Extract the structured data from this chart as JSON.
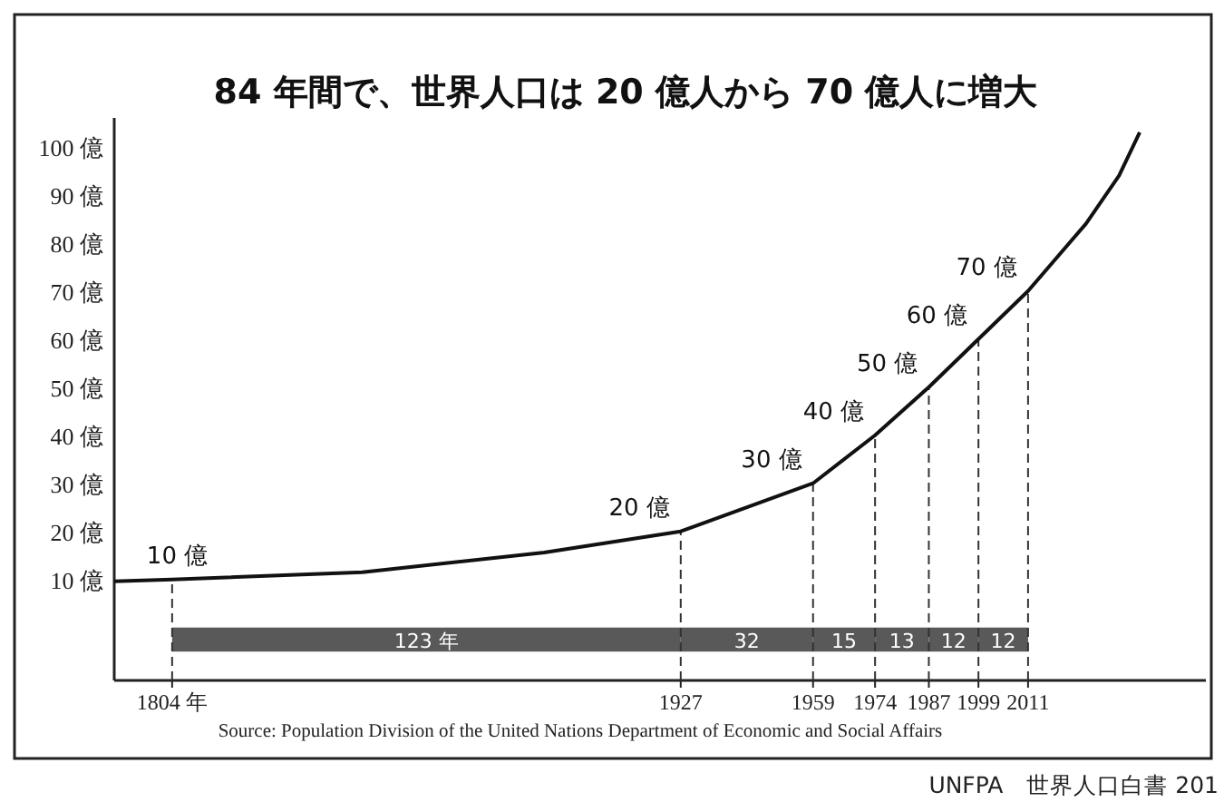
{
  "chart_data": {
    "type": "line",
    "title": "84 年間で、世界人口は 20 億人から 70 億人に増大",
    "x": [
      1790,
      1804,
      1850,
      1894,
      1927,
      1959,
      1974,
      1987,
      1999,
      2011,
      2025,
      2033,
      2038
    ],
    "series": [
      {
        "color": "#111111",
        "values": [
          9.6,
          10,
          11.5,
          15.6,
          20,
          30,
          40,
          50,
          60,
          70,
          84,
          94,
          103
        ]
      }
    ],
    "xlim": [
      1790,
      2054
    ],
    "ylim": [
      -11,
      106
    ],
    "xticks": [
      {
        "value": 1804,
        "label": "1804 年"
      },
      1927,
      1959,
      1974,
      1987,
      1999,
      2011
    ],
    "yticks": [
      {
        "value": 10,
        "label": "10 億"
      },
      {
        "value": 20,
        "label": "20 億"
      },
      {
        "value": 30,
        "label": "30 億"
      },
      {
        "value": 40,
        "label": "40 億"
      },
      {
        "value": 50,
        "label": "50 億"
      },
      {
        "value": 60,
        "label": "60 億"
      },
      {
        "value": 70,
        "label": "70 億"
      },
      {
        "value": 80,
        "label": "80 億"
      },
      {
        "value": 90,
        "label": "90 億"
      },
      {
        "value": 100,
        "label": "100 億"
      }
    ],
    "annotations": [
      {
        "text": "10 億",
        "x": 1804,
        "y": 10
      },
      {
        "text": "20 億",
        "x": 1927,
        "y": 20
      },
      {
        "text": "30 億",
        "x": 1959,
        "y": 30
      },
      {
        "text": "40 億",
        "x": 1974,
        "y": 40
      },
      {
        "text": "50 億",
        "x": 1987,
        "y": 50
      },
      {
        "text": "60 億",
        "x": 1999,
        "y": 60
      },
      {
        "text": "70 億",
        "x": 2011,
        "y": 70
      },
      "Source: Population Division of the United Nations Department of Economic and Social Affairs",
      "UNFPA　世界人口白書 201"
    ],
    "ref_lines": [
      {
        "axis": "x",
        "value": 1804,
        "line_style": "dashed"
      },
      {
        "axis": "x",
        "value": 1927,
        "line_style": "dashed"
      },
      {
        "axis": "x",
        "value": 1959,
        "line_style": "dashed"
      },
      {
        "axis": "x",
        "value": 1974,
        "line_style": "dashed"
      },
      {
        "axis": "x",
        "value": 1987,
        "line_style": "dashed"
      },
      {
        "axis": "x",
        "value": 1999,
        "line_style": "dashed"
      },
      {
        "axis": "x",
        "value": 2011,
        "line_style": "dashed"
      }
    ],
    "bands": [
      {
        "axis": "x",
        "from": 1804,
        "to": 1927,
        "label": "123 年",
        "color": "#595959"
      },
      {
        "axis": "x",
        "from": 1927,
        "to": 1959,
        "label": "32",
        "color": "#595959"
      },
      {
        "axis": "x",
        "from": 1959,
        "to": 1974,
        "label": "15",
        "color": "#595959"
      },
      {
        "axis": "x",
        "from": 1974,
        "to": 1987,
        "label": "13",
        "color": "#595959"
      },
      {
        "axis": "x",
        "from": 1987,
        "to": 1999,
        "label": "12",
        "color": "#595959"
      },
      {
        "axis": "x",
        "from": 1999,
        "to": 2011,
        "label": "12",
        "color": "#595959"
      }
    ],
    "grid": false,
    "marker": "none",
    "line_style": "solid"
  }
}
